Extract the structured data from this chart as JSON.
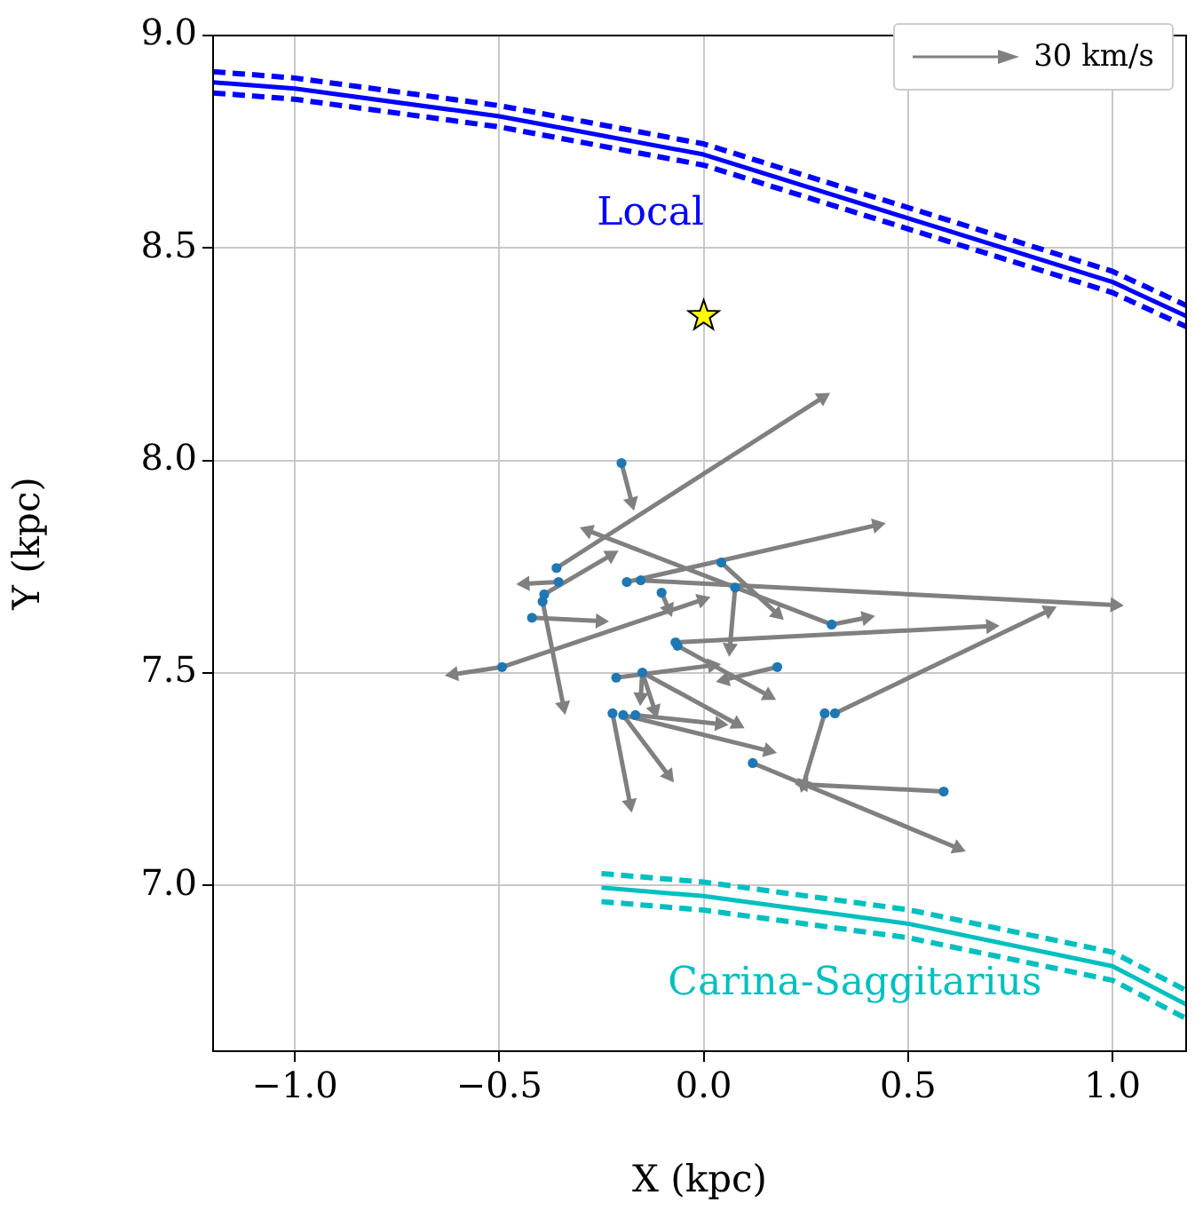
{
  "chart_data": {
    "type": "line",
    "xlabel": "X (kpc)",
    "ylabel": "Y (kpc)",
    "xlim": [
      -1.2,
      1.18
    ],
    "ylim": [
      6.61,
      9.0
    ],
    "xticks": [
      {
        "value": -1,
        "label": "−1.0"
      },
      {
        "value": -0.5,
        "label": "−0.5"
      },
      {
        "value": 0,
        "label": "0.0"
      },
      {
        "value": 0.5,
        "label": "0.5"
      },
      {
        "value": 1,
        "label": "1.0"
      }
    ],
    "yticks": [
      {
        "value": 7,
        "label": "7.0"
      },
      {
        "value": 7.5,
        "label": "7.5"
      },
      {
        "value": 8,
        "label": "8.0"
      },
      {
        "value": 8.5,
        "label": "8.5"
      },
      {
        "value": 9,
        "label": "9.0"
      }
    ],
    "grid": true,
    "legend": false,
    "annotations": [
      "30 km/s"
    ],
    "series": [
      {
        "name": "Local",
        "color": "#0000ff",
        "line_style": "solid",
        "marker": "none",
        "x": [
          -1.2,
          -1.0,
          -0.5,
          0,
          0.5,
          1.0,
          1.18
        ],
        "values": [
          8.89,
          8.875,
          8.81,
          8.72,
          8.57,
          8.42,
          8.34
        ]
      },
      {
        "type": "line",
        "color": "#0000ff",
        "line_style": "dashed",
        "marker": "none",
        "x": [
          -1.2,
          -1.0,
          -0.5,
          0,
          0.5,
          1.0,
          1.18
        ],
        "values": [
          8.915,
          8.9,
          8.835,
          8.745,
          8.595,
          8.445,
          8.365
        ]
      },
      {
        "type": "line",
        "color": "#0000ff",
        "line_style": "dashed",
        "marker": "none",
        "x": [
          -1.2,
          -1.0,
          -0.5,
          0,
          0.5,
          1.0,
          1.18
        ],
        "values": [
          8.865,
          8.85,
          8.785,
          8.695,
          8.545,
          8.395,
          8.315
        ]
      },
      {
        "name": "Carina-Saggitarius",
        "color": "#00bfbf",
        "line_style": "solid",
        "marker": "none",
        "x": [
          -0.25,
          0,
          0.5,
          1.0,
          1.18
        ],
        "values": [
          6.995,
          6.975,
          6.91,
          6.81,
          6.72
        ]
      },
      {
        "type": "line",
        "color": "#00bfbf",
        "line_style": "dashed",
        "marker": "none",
        "x": [
          -0.25,
          0,
          0.5,
          1.0,
          1.18
        ],
        "values": [
          7.028,
          7.008,
          6.943,
          6.843,
          6.753
        ]
      },
      {
        "type": "line",
        "color": "#00bfbf",
        "line_style": "dashed",
        "marker": "none",
        "x": [
          -0.25,
          0,
          0.5,
          1.0,
          1.18
        ],
        "values": [
          6.962,
          6.942,
          6.877,
          6.777,
          6.687
        ]
      },
      {
        "type": "line",
        "color": "#808080",
        "line_style": "solid",
        "marker": "triangle",
        "x": [
          -0.201,
          -0.176
        ],
        "values": [
          7.994,
          7.902
        ]
      },
      {
        "type": "line",
        "color": "#808080",
        "line_style": "solid",
        "marker": "triangle",
        "x": [
          -0.36,
          0.291
        ],
        "values": [
          7.747,
          8.148
        ]
      },
      {
        "type": "line",
        "color": "#808080",
        "line_style": "solid",
        "marker": "triangle",
        "x": [
          -0.355,
          -0.437
        ],
        "values": [
          7.714,
          7.71
        ]
      },
      {
        "type": "line",
        "color": "#808080",
        "line_style": "solid",
        "marker": "triangle",
        "x": [
          -0.39,
          -0.227
        ],
        "values": [
          7.685,
          7.777
        ]
      },
      {
        "type": "line",
        "color": "#808080",
        "line_style": "solid",
        "marker": "triangle",
        "x": [
          -0.42,
          -0.253
        ],
        "values": [
          7.63,
          7.622
        ]
      },
      {
        "type": "line",
        "color": "#808080",
        "line_style": "solid",
        "marker": "triangle",
        "x": [
          -0.394,
          -0.343
        ],
        "values": [
          7.668,
          7.422
        ]
      },
      {
        "type": "line",
        "color": "#808080",
        "line_style": "solid",
        "marker": "triangle",
        "x": [
          0.313,
          -0.283
        ],
        "values": [
          7.614,
          7.835
        ]
      },
      {
        "type": "line",
        "color": "#808080",
        "line_style": "solid",
        "marker": "triangle",
        "x": [
          0.043,
          0.18
        ],
        "values": [
          7.76,
          7.639
        ]
      },
      {
        "type": "line",
        "color": "#808080",
        "line_style": "solid",
        "marker": "triangle",
        "x": [
          0.077,
          0.064
        ],
        "values": [
          7.701,
          7.559
        ]
      },
      {
        "type": "line",
        "color": "#808080",
        "line_style": "solid",
        "marker": "triangle",
        "x": [
          -0.103,
          -0.086
        ],
        "values": [
          7.689,
          7.651
        ]
      },
      {
        "type": "line",
        "color": "#808080",
        "line_style": "solid",
        "marker": "triangle",
        "x": [
          -0.493,
          -0.612
        ],
        "values": [
          7.514,
          7.497
        ]
      },
      {
        "type": "line",
        "color": "#808080",
        "line_style": "solid",
        "marker": "triangle",
        "x": [
          -0.493,
          -0.004
        ],
        "values": [
          7.514,
          7.672
        ]
      },
      {
        "type": "line",
        "color": "#808080",
        "line_style": "solid",
        "marker": "triangle",
        "x": [
          -0.15,
          -0.154
        ],
        "values": [
          7.501,
          7.443
        ]
      },
      {
        "type": "line",
        "color": "#808080",
        "line_style": "solid",
        "marker": "triangle",
        "x": [
          -0.15,
          -0.12
        ],
        "values": [
          7.501,
          7.413
        ]
      },
      {
        "type": "line",
        "color": "#808080",
        "line_style": "solid",
        "marker": "triangle",
        "x": [
          -0.15,
          0.081
        ],
        "values": [
          7.501,
          7.38
        ]
      },
      {
        "type": "line",
        "color": "#808080",
        "line_style": "solid",
        "marker": "triangle",
        "x": [
          -0.214,
          0.021
        ],
        "values": [
          7.489,
          7.518
        ]
      },
      {
        "type": "line",
        "color": "#808080",
        "line_style": "solid",
        "marker": "triangle",
        "x": [
          -0.223,
          -0.18
        ],
        "values": [
          7.405,
          7.192
        ]
      },
      {
        "type": "line",
        "color": "#808080",
        "line_style": "solid",
        "marker": "triangle",
        "x": [
          -0.197,
          -0.086
        ],
        "values": [
          7.401,
          7.259
        ]
      },
      {
        "type": "line",
        "color": "#808080",
        "line_style": "solid",
        "marker": "triangle",
        "x": [
          -0.167,
          0.039
        ],
        "values": [
          7.401,
          7.38
        ]
      },
      {
        "type": "line",
        "color": "#808080",
        "line_style": "solid",
        "marker": "triangle",
        "x": [
          -0.197,
          0.158
        ],
        "values": [
          7.401,
          7.317
        ]
      },
      {
        "type": "line",
        "color": "#808080",
        "line_style": "solid",
        "marker": "triangle",
        "x": [
          -0.064,
          0.158
        ],
        "values": [
          7.564,
          7.447
        ]
      },
      {
        "type": "line",
        "color": "#808080",
        "line_style": "solid",
        "marker": "triangle",
        "x": [
          -0.154,
          1.006
        ],
        "values": [
          7.718,
          7.66
        ]
      },
      {
        "type": "line",
        "color": "#808080",
        "line_style": "solid",
        "marker": "triangle",
        "x": [
          -0.069,
          0.702
        ],
        "values": [
          7.572,
          7.61
        ]
      },
      {
        "type": "line",
        "color": "#808080",
        "line_style": "solid",
        "marker": "triangle",
        "x": [
          -0.188,
          0.424
        ],
        "values": [
          7.714,
          7.848
        ]
      },
      {
        "type": "line",
        "color": "#808080",
        "line_style": "solid",
        "marker": "triangle",
        "x": [
          0.313,
          0.398
        ],
        "values": [
          7.614,
          7.63
        ]
      },
      {
        "type": "line",
        "color": "#808080",
        "line_style": "solid",
        "marker": "triangle",
        "x": [
          0.18,
          0.051
        ],
        "values": [
          7.514,
          7.484
        ]
      },
      {
        "type": "line",
        "color": "#808080",
        "line_style": "solid",
        "marker": "triangle",
        "x": [
          0.321,
          0.844
        ],
        "values": [
          7.405,
          7.647
        ]
      },
      {
        "type": "line",
        "color": "#808080",
        "line_style": "solid",
        "marker": "triangle",
        "x": [
          0.296,
          0.244
        ],
        "values": [
          7.405,
          7.238
        ]
      },
      {
        "type": "line",
        "color": "#808080",
        "line_style": "solid",
        "marker": "triangle",
        "x": [
          0.587,
          0.244
        ],
        "values": [
          7.221,
          7.238
        ]
      },
      {
        "type": "line",
        "color": "#808080",
        "line_style": "solid",
        "marker": "triangle",
        "x": [
          0.12,
          0.621
        ],
        "values": [
          7.288,
          7.088
        ]
      },
      {
        "type": "scatter",
        "color": "#1f77b4",
        "marker": "circle",
        "x": [
          -0.201,
          -0.36,
          -0.355,
          -0.39,
          -0.42,
          -0.394,
          0.313,
          0.043,
          0.077,
          -0.103,
          -0.493,
          -0.15,
          -0.214,
          -0.223,
          -0.197,
          -0.167,
          -0.064,
          -0.154,
          -0.069,
          -0.188,
          0.18,
          0.321,
          0.296,
          0.587,
          0.12
        ],
        "values": [
          7.994,
          7.747,
          7.714,
          7.685,
          7.63,
          7.668,
          7.614,
          7.76,
          7.701,
          7.689,
          7.514,
          7.501,
          7.489,
          7.405,
          7.401,
          7.401,
          7.564,
          7.718,
          7.572,
          7.714,
          7.514,
          7.405,
          7.405,
          7.221,
          7.288
        ]
      },
      {
        "type": "scatter",
        "color": "#ffff00",
        "marker": "star",
        "x": [
          0
        ],
        "values": [
          8.34
        ]
      }
    ]
  }
}
